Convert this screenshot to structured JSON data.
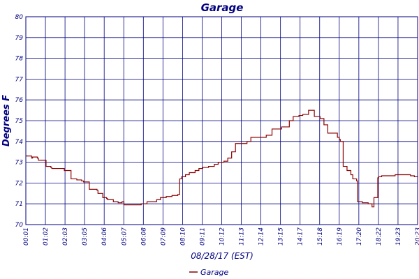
{
  "chart_data": {
    "type": "line",
    "title": "Garage",
    "xlabel": "08/28/17 (EST)",
    "ylabel": "Degrees F",
    "ylim": [
      70,
      80
    ],
    "y_ticks": [
      70,
      71,
      72,
      73,
      74,
      75,
      76,
      77,
      78,
      79,
      80
    ],
    "x_ticks": [
      "00:01",
      "01:02",
      "02:03",
      "03:05",
      "04:06",
      "05:07",
      "06:08",
      "07:09",
      "08:10",
      "09:11",
      "10:12",
      "11:13",
      "12:14",
      "13:15",
      "14:17",
      "15:18",
      "16:19",
      "17:20",
      "18:22",
      "19:23",
      "20:23"
    ],
    "grid": true,
    "colors": {
      "axis": "#000080",
      "grid": "#000080",
      "series": "#8b0000"
    },
    "series": [
      {
        "name": "Garage",
        "x_hours": [
          0,
          0.3,
          0.35,
          0.6,
          0.65,
          1.0,
          1.05,
          1.3,
          1.35,
          1.7,
          2.0,
          2.3,
          2.35,
          2.6,
          2.65,
          2.9,
          3.0,
          3.3,
          3.35,
          3.7,
          3.75,
          3.95,
          4.0,
          4.2,
          4.25,
          4.5,
          4.55,
          4.8,
          5.0,
          5.1,
          5.5,
          5.6,
          6.0,
          6.1,
          6.3,
          6.5,
          6.8,
          7.0,
          7.2,
          7.3,
          7.6,
          7.9,
          8.0,
          8.1,
          8.3,
          8.5,
          8.8,
          9.0,
          9.2,
          9.5,
          9.8,
          10.0,
          10.3,
          10.5,
          10.7,
          10.9,
          11.2,
          11.5,
          11.7,
          12.0,
          12.2,
          12.5,
          12.8,
          13.0,
          13.3,
          13.5,
          13.7,
          13.9,
          14.2,
          14.4,
          14.6,
          14.7,
          14.8,
          15.0,
          15.1,
          15.3,
          15.5,
          15.7,
          16.0,
          16.2,
          16.3,
          16.35,
          16.5,
          16.7,
          16.9,
          17.0,
          17.2,
          17.25,
          17.5,
          17.8,
          18.0,
          18.1,
          18.3,
          18.35,
          18.5,
          18.8,
          19.0,
          19.2,
          19.5,
          19.8,
          20.0,
          20.2,
          20.37
        ],
        "values": [
          73.3,
          73.2,
          73.25,
          73.2,
          73.1,
          73.1,
          72.8,
          72.75,
          72.7,
          72.7,
          72.6,
          72.6,
          72.2,
          72.2,
          72.15,
          72.1,
          72.05,
          71.7,
          71.7,
          71.65,
          71.5,
          71.5,
          71.3,
          71.25,
          71.2,
          71.2,
          71.1,
          71.05,
          71.1,
          70.95,
          70.95,
          70.95,
          71.0,
          71.0,
          71.1,
          71.1,
          71.2,
          71.3,
          71.3,
          71.35,
          71.4,
          71.45,
          72.2,
          72.3,
          72.4,
          72.5,
          72.6,
          72.7,
          72.75,
          72.8,
          72.9,
          73.0,
          73.05,
          73.2,
          73.5,
          73.9,
          73.9,
          74.0,
          74.2,
          74.2,
          74.2,
          74.3,
          74.6,
          74.6,
          74.7,
          74.7,
          75.0,
          75.2,
          75.25,
          75.3,
          75.3,
          75.5,
          75.5,
          75.2,
          75.2,
          75.1,
          74.8,
          74.4,
          74.4,
          74.2,
          74.1,
          74.0,
          72.8,
          72.6,
          72.4,
          72.2,
          72.1,
          71.1,
          71.05,
          71.0,
          70.85,
          71.3,
          72.25,
          72.3,
          72.35,
          72.35,
          72.35,
          72.4,
          72.4,
          72.4,
          72.35,
          72.3,
          72.35
        ]
      }
    ]
  }
}
